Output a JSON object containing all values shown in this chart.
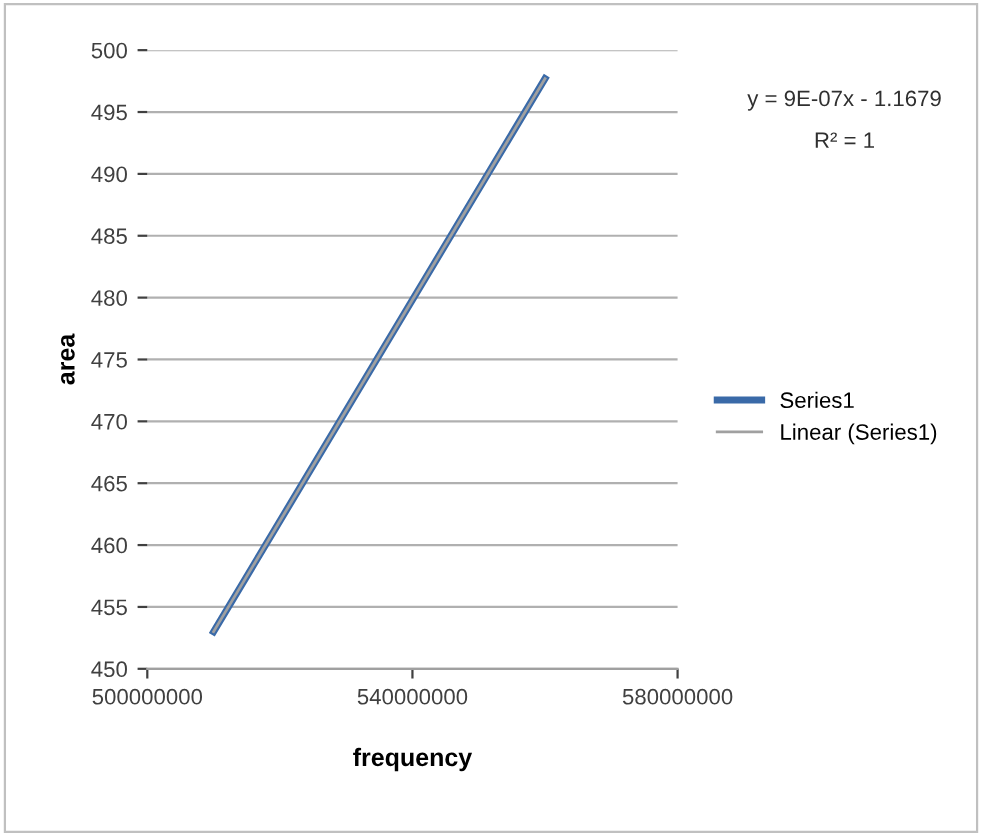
{
  "chart_data": {
    "type": "line",
    "xlabel": "frequency",
    "ylabel": "area",
    "xlim": [
      500000000,
      580000000
    ],
    "xticks": [
      500000000,
      540000000,
      580000000
    ],
    "ylim": [
      450,
      500
    ],
    "yticks": [
      450,
      455,
      460,
      465,
      470,
      475,
      480,
      485,
      490,
      495,
      500
    ],
    "x": [
      510000000,
      560000000
    ],
    "grid": "y",
    "legend": "right",
    "marker": "none",
    "line_style": "solid",
    "annotations": [
      "y = 9E-07x - 1.1679",
      "R² = 1"
    ],
    "series": [
      {
        "name": "Series1",
        "color": "#3a6aa8",
        "values": [
          453,
          497.7
        ]
      },
      {
        "name": "Linear (Series1)",
        "color": "#a0a0a0",
        "values": [
          453,
          497.7
        ]
      }
    ]
  }
}
